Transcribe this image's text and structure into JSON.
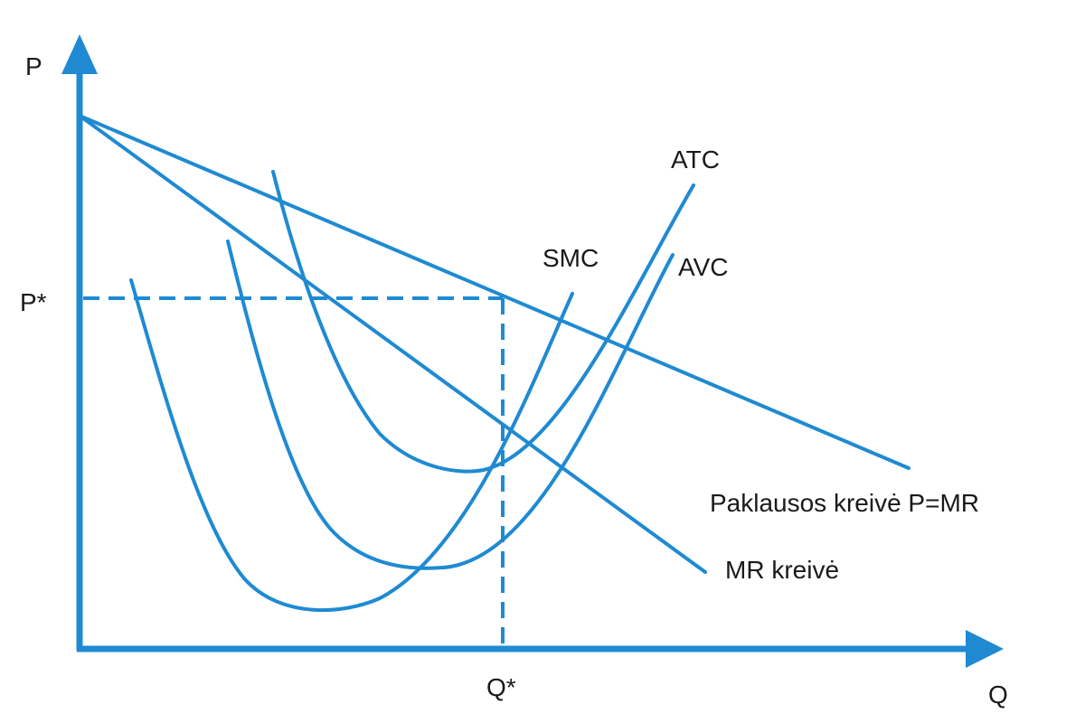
{
  "colors": {
    "curve": "#1f8ad2",
    "axis": "#1f8ad2",
    "text": "#1a1a1a",
    "background": "#ffffff"
  },
  "axes": {
    "y_label": "P",
    "x_label": "Q"
  },
  "markers": {
    "price": "P*",
    "quantity": "Q*"
  },
  "curves": {
    "atc": "ATC",
    "avc": "AVC",
    "smc": "SMC",
    "demand": "Paklausos kreivė P=MR",
    "mr": "MR kreivė"
  }
}
